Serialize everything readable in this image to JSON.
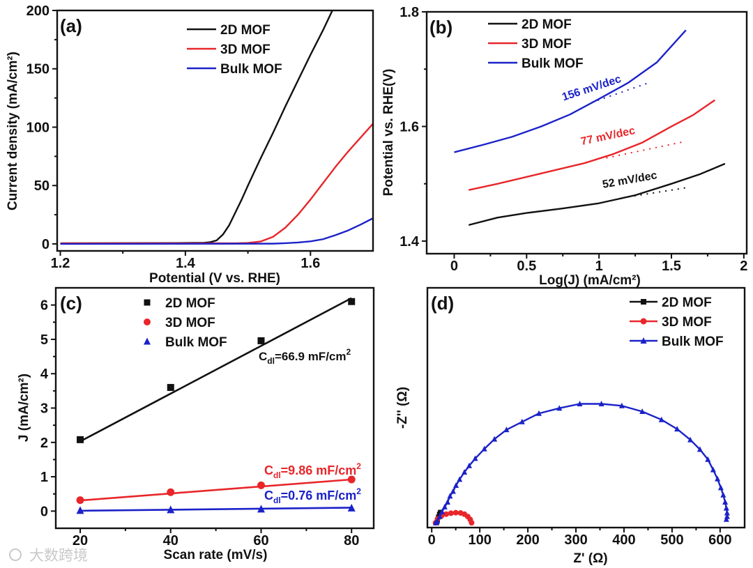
{
  "colors": {
    "black": "#111111",
    "red": "#e8262a",
    "blue": "#1b22c8"
  },
  "watermark": "大数跨境",
  "chart_data": [
    {
      "label": "(a)",
      "type": "line",
      "xlabel": "Potential (V vs. RHE)",
      "ylabel": "Current density (mA/cm²)",
      "xlim": [
        1.195,
        1.7
      ],
      "ylim": [
        -6,
        200
      ],
      "xticks": [
        "1.2",
        "1.4",
        "1.6"
      ],
      "xticks_minor": [
        1.3,
        1.5,
        1.7
      ],
      "yticks": [
        "0",
        "50",
        "100",
        "150",
        "200"
      ],
      "yticks_minor": [
        25,
        75,
        125,
        175
      ],
      "legend": "top-right",
      "series": [
        {
          "name": "2D MOF",
          "color": "black",
          "points": [
            [
              1.2,
              0.5
            ],
            [
              1.4,
              0.8
            ],
            [
              1.43,
              1
            ],
            [
              1.44,
              1.5
            ],
            [
              1.45,
              3
            ],
            [
              1.46,
              8
            ],
            [
              1.47,
              16
            ],
            [
              1.48,
              27
            ],
            [
              1.49,
              38
            ],
            [
              1.5,
              50
            ],
            [
              1.52,
              73
            ],
            [
              1.54,
              95
            ],
            [
              1.56,
              118
            ],
            [
              1.58,
              140
            ],
            [
              1.6,
              162
            ],
            [
              1.62,
              183
            ],
            [
              1.635,
              200
            ]
          ]
        },
        {
          "name": "3D MOF",
          "color": "red",
          "points": [
            [
              1.2,
              0.5
            ],
            [
              1.48,
              0.5
            ],
            [
              1.5,
              0.8
            ],
            [
              1.52,
              2
            ],
            [
              1.54,
              6
            ],
            [
              1.56,
              14
            ],
            [
              1.58,
              25
            ],
            [
              1.6,
              38
            ],
            [
              1.62,
              52
            ],
            [
              1.64,
              66
            ],
            [
              1.66,
              79
            ],
            [
              1.68,
              91
            ],
            [
              1.7,
              103
            ]
          ]
        },
        {
          "name": "Bulk MOF",
          "color": "blue",
          "points": [
            [
              1.2,
              0
            ],
            [
              1.54,
              0.2
            ],
            [
              1.56,
              0.6
            ],
            [
              1.58,
              1.2
            ],
            [
              1.6,
              2.2
            ],
            [
              1.62,
              4
            ],
            [
              1.64,
              7.5
            ],
            [
              1.66,
              11.5
            ],
            [
              1.68,
              16.5
            ],
            [
              1.7,
              22
            ]
          ]
        }
      ]
    },
    {
      "label": "(b)",
      "type": "line",
      "xlabel": "Log(J) (mA/cm²)",
      "ylabel": "Potential vs. RHE(V)",
      "xlim": [
        -0.19,
        2.02
      ],
      "ylim": [
        1.378,
        1.8
      ],
      "xticks": [
        "0",
        "0.5",
        "1",
        "1.5",
        "2"
      ],
      "xticks_minor": [
        -0.25,
        0.25,
        0.75,
        1.25,
        1.75
      ],
      "yticks": [
        "1.4",
        "1.6",
        "1.8"
      ],
      "yticks_minor": [
        1.5,
        1.7
      ],
      "legend": "top-left",
      "series": [
        {
          "name": "2D MOF",
          "color": "black",
          "points": [
            [
              0.1,
              1.428
            ],
            [
              0.3,
              1.441
            ],
            [
              0.5,
              1.449
            ],
            [
              0.75,
              1.457
            ],
            [
              1.0,
              1.466
            ],
            [
              1.25,
              1.48
            ],
            [
              1.5,
              1.5
            ],
            [
              1.7,
              1.517
            ],
            [
              1.87,
              1.535
            ]
          ],
          "fit": [
            [
              1.2,
              1.477
            ],
            [
              1.6,
              1.493
            ]
          ],
          "annotation": "52 mV/dec"
        },
        {
          "name": "3D MOF",
          "color": "red",
          "points": [
            [
              0.1,
              1.489
            ],
            [
              0.3,
              1.5
            ],
            [
              0.5,
              1.512
            ],
            [
              0.7,
              1.524
            ],
            [
              0.9,
              1.536
            ],
            [
              1.1,
              1.552
            ],
            [
              1.3,
              1.572
            ],
            [
              1.5,
              1.6
            ],
            [
              1.65,
              1.62
            ],
            [
              1.8,
              1.646
            ]
          ],
          "fit": [
            [
              1.05,
              1.545
            ],
            [
              1.58,
              1.573
            ]
          ],
          "annotation": "77 mV/dec"
        },
        {
          "name": "Bulk MOF",
          "color": "blue",
          "points": [
            [
              0,
              1.555
            ],
            [
              0.2,
              1.568
            ],
            [
              0.4,
              1.582
            ],
            [
              0.6,
              1.6
            ],
            [
              0.8,
              1.621
            ],
            [
              1.0,
              1.648
            ],
            [
              1.2,
              1.676
            ],
            [
              1.4,
              1.712
            ],
            [
              1.6,
              1.768
            ]
          ],
          "fit": [
            [
              0.95,
              1.642
            ],
            [
              1.33,
              1.675
            ]
          ],
          "annotation": "156 mV/dec"
        }
      ]
    },
    {
      "label": "(c)",
      "type": "scatter",
      "xlabel": "Scan rate (mV/s)",
      "ylabel": "J (mA/cm²)",
      "xlim": [
        14.6,
        84.9
      ],
      "ylim": [
        -0.5,
        6.5
      ],
      "xticks": [
        "20",
        "40",
        "60",
        "80"
      ],
      "xticks_minor": [
        30,
        50,
        70
      ],
      "yticks": [
        "0",
        "1",
        "2",
        "3",
        "4",
        "5",
        "6"
      ],
      "yticks_minor": [
        0.5,
        1.5,
        2.5,
        3.5,
        4.5,
        5.5
      ],
      "legend": "top-left",
      "series": [
        {
          "name": "2D MOF",
          "color": "black",
          "marker": "square",
          "x": [
            20,
            40,
            60,
            80
          ],
          "y": [
            2.08,
            3.6,
            4.96,
            6.1
          ],
          "fit": [
            [
              20,
              2.03
            ],
            [
              80,
              6.2
            ]
          ],
          "annotation": {
            "c": "C",
            "sub": "dl",
            "main": "=66.9 mF/cm",
            "sup": "2"
          }
        },
        {
          "name": "3D MOF",
          "color": "red",
          "marker": "circle",
          "x": [
            20,
            40,
            60,
            80
          ],
          "y": [
            0.32,
            0.55,
            0.75,
            0.92
          ],
          "fit": [
            [
              20,
              0.31
            ],
            [
              80,
              0.92
            ]
          ],
          "annotation": {
            "c": "C",
            "sub": "dl",
            "main": "=9.86 mF/cm",
            "sup": "2"
          }
        },
        {
          "name": "Bulk MOF",
          "color": "blue",
          "marker": "triangle",
          "x": [
            20,
            40,
            60,
            80
          ],
          "y": [
            0.02,
            0.04,
            0.06,
            0.09
          ],
          "fit": [
            [
              20,
              0.01
            ],
            [
              80,
              0.1
            ]
          ],
          "annotation": {
            "c": "C",
            "sub": "dl",
            "main": "=0.76 mF/cm",
            "sup": "2"
          }
        }
      ]
    },
    {
      "label": "(d)",
      "type": "line",
      "xlabel": "Z' (Ω)",
      "ylabel": "-Z'' (Ω)",
      "xlim": [
        -9,
        651
      ],
      "ylim": [
        -10,
        490
      ],
      "xticks": [
        "0",
        "100",
        "200",
        "300",
        "400",
        "500",
        "600"
      ],
      "xticks_minor": [
        50,
        150,
        250,
        350,
        450,
        550
      ],
      "yticks": [],
      "yticks_minor": [],
      "legend": "top-right",
      "series": [
        {
          "name": "2D MOF",
          "color": "black",
          "marker": "square",
          "points": [
            [
              10,
              0
            ],
            [
              12,
              6
            ],
            [
              14,
              12
            ],
            [
              16,
              18
            ],
            [
              18,
              22
            ]
          ]
        },
        {
          "name": "3D MOF",
          "color": "red",
          "marker": "circle",
          "points": [
            [
              8,
              0
            ],
            [
              12,
              8
            ],
            [
              20,
              14
            ],
            [
              30,
              18
            ],
            [
              40,
              20
            ],
            [
              50,
              21
            ],
            [
              60,
              20.5
            ],
            [
              68,
              18
            ],
            [
              75,
              13
            ],
            [
              80,
              7
            ],
            [
              83,
              0
            ]
          ]
        },
        {
          "name": "Bulk MOF",
          "color": "blue",
          "marker": "triangle",
          "points": [
            [
              8,
              0
            ],
            [
              11.5,
              3
            ],
            [
              16.5,
              13
            ],
            [
              21.5,
              23
            ],
            [
              27,
              33
            ],
            [
              33,
              43
            ],
            [
              38,
              55.5
            ],
            [
              44.5,
              65.5
            ],
            [
              50.5,
              78
            ],
            [
              58,
              90.5
            ],
            [
              68,
              105.5
            ],
            [
              78,
              119
            ],
            [
              90.5,
              134
            ],
            [
              109.5,
              154
            ],
            [
              130.5,
              174.5
            ],
            [
              155.5,
              194
            ],
            [
              188,
              210.5
            ],
            [
              223,
              228
            ],
            [
              265.5,
              239
            ],
            [
              308,
              248
            ],
            [
              353,
              248
            ],
            [
              395.5,
              244
            ],
            [
              438,
              232
            ],
            [
              478,
              215
            ],
            [
              510.5,
              195.5
            ],
            [
              538,
              173
            ],
            [
              558,
              153
            ],
            [
              574.5,
              132
            ],
            [
              585.5,
              110.5
            ],
            [
              594.5,
              91.5
            ],
            [
              601.5,
              73
            ],
            [
              606.5,
              58
            ],
            [
              610.5,
              43
            ],
            [
              613,
              30.5
            ],
            [
              614.5,
              20.5
            ],
            [
              614.5,
              13
            ],
            [
              613,
              7
            ]
          ]
        }
      ]
    }
  ]
}
